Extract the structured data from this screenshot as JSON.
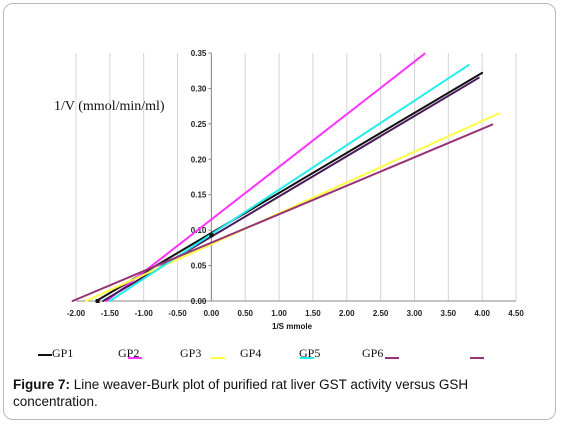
{
  "chart_data": {
    "type": "line",
    "xlabel": "1/S mmole",
    "ylabel": "1/V (mmol/min/ml)",
    "xlim": [
      -2.0,
      4.5
    ],
    "ylim": [
      0,
      0.35
    ],
    "x_ticks": [
      "-2.00",
      "-1.50",
      "-1.00",
      "-0.50",
      "0.00",
      "0.50",
      "1.00",
      "1.50",
      "2.00",
      "2.50",
      "3.00",
      "3.50",
      "4.00",
      "4.50"
    ],
    "y_ticks": [
      "0.00",
      "0.05",
      "0.10",
      "0.15",
      "0.20",
      "0.25",
      "0.30",
      "0.35"
    ],
    "legend_position": "bottom",
    "series": [
      {
        "name": "GP1",
        "color": "#111111",
        "points": [
          [
            -1.7,
            0.0
          ],
          [
            4.0,
            0.322
          ]
        ]
      },
      {
        "name": "GP2",
        "color": "#ff33ff",
        "points": [
          [
            -1.55,
            0.0
          ],
          [
            3.15,
            0.349
          ]
        ]
      },
      {
        "name": "GP3",
        "color": "#4a1a5a",
        "points": [
          [
            -1.6,
            0.0
          ],
          [
            3.95,
            0.315
          ]
        ]
      },
      {
        "name": "GP4",
        "color": "#ffff44",
        "points": [
          [
            -1.85,
            0.0
          ],
          [
            4.25,
            0.265
          ]
        ]
      },
      {
        "name": "GP5",
        "color": "#22eeee",
        "points": [
          [
            -1.5,
            0.0
          ],
          [
            3.8,
            0.333
          ]
        ]
      },
      {
        "name": "GP6",
        "color": "#993377",
        "points": [
          [
            -2.05,
            0.0
          ],
          [
            4.15,
            0.249
          ]
        ]
      }
    ],
    "markers": [
      {
        "series": "GP1",
        "x": -1.68,
        "y": 0.0
      },
      {
        "series": "GP1",
        "x": 0.0,
        "y": 0.093
      }
    ]
  },
  "legend": {
    "items": [
      {
        "label": "GP1",
        "color": "#111111"
      },
      {
        "label": "GP2",
        "color": "#ff33ff"
      },
      {
        "label": "GP3",
        "color": "#4a1a5a"
      },
      {
        "label": "GP4",
        "color": "#ffff44"
      },
      {
        "label": "GP5",
        "color": "#22eeee"
      },
      {
        "label": "GP6",
        "color": "#993377"
      }
    ]
  },
  "caption": {
    "label": "Figure 7:",
    "text": " Line weaver-Burk plot of purified rat liver GST activity versus GSH concentration."
  }
}
